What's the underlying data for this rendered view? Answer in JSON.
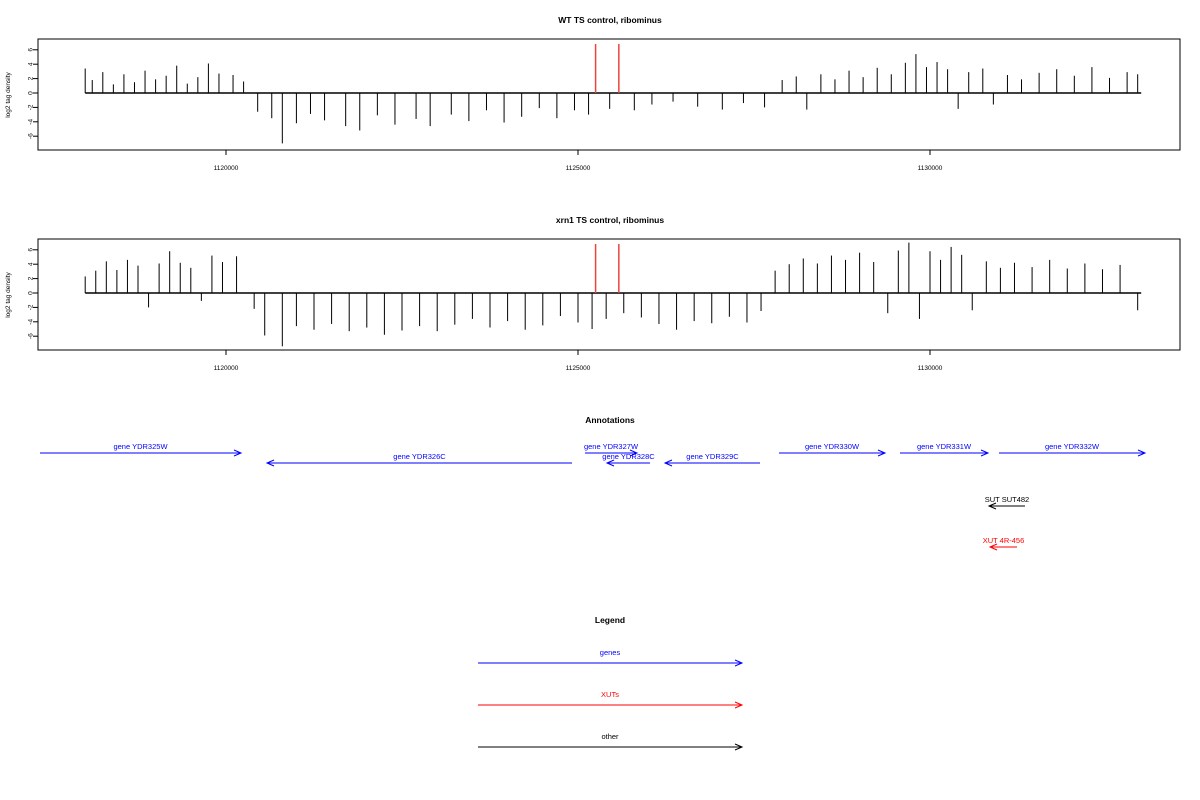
{
  "chart_data": [
    {
      "type": "bar",
      "title": "WT TS control, ribominus",
      "ylabel": "log2 tag density",
      "xlabel": "",
      "xlim": [
        1117900,
        1133100
      ],
      "ylim": [
        -8,
        7.5
      ],
      "yticks": [
        "6",
        "4",
        "2",
        "0",
        "-2",
        "-4",
        "-6"
      ],
      "ytick_values": [
        6,
        4,
        2,
        0,
        -2,
        -4,
        -6
      ],
      "xticks": [
        "1120000",
        "1125000",
        "1130000"
      ],
      "xtick_values": [
        1120000,
        1125000,
        1130000
      ],
      "baseline": {
        "x": [
          1118000,
          1133000
        ],
        "y": 0
      },
      "markers": {
        "color": "#e8453c",
        "x": [
          1125250,
          1125580
        ],
        "y_top": 6.8
      },
      "bar_color": "#000000",
      "bars": [
        {
          "x": 1118000,
          "y": 3.4
        },
        {
          "x": 1118100,
          "y": 1.8
        },
        {
          "x": 1118250,
          "y": 2.9
        },
        {
          "x": 1118400,
          "y": 1.2
        },
        {
          "x": 1118550,
          "y": 2.6
        },
        {
          "x": 1118700,
          "y": 1.5
        },
        {
          "x": 1118850,
          "y": 3.1
        },
        {
          "x": 1119000,
          "y": 1.9
        },
        {
          "x": 1119150,
          "y": 2.4
        },
        {
          "x": 1119300,
          "y": 3.8
        },
        {
          "x": 1119450,
          "y": 1.3
        },
        {
          "x": 1119600,
          "y": 2.2
        },
        {
          "x": 1119750,
          "y": 4.1
        },
        {
          "x": 1119900,
          "y": 2.7
        },
        {
          "x": 1120100,
          "y": 2.5
        },
        {
          "x": 1120250,
          "y": 1.6
        },
        {
          "x": 1120450,
          "y": -2.6
        },
        {
          "x": 1120650,
          "y": -3.5
        },
        {
          "x": 1120800,
          "y": -7.0
        },
        {
          "x": 1121000,
          "y": -4.2
        },
        {
          "x": 1121200,
          "y": -2.9
        },
        {
          "x": 1121400,
          "y": -3.8
        },
        {
          "x": 1121700,
          "y": -4.6
        },
        {
          "x": 1121900,
          "y": -5.2
        },
        {
          "x": 1122150,
          "y": -3.1
        },
        {
          "x": 1122400,
          "y": -4.4
        },
        {
          "x": 1122700,
          "y": -3.6
        },
        {
          "x": 1122900,
          "y": -4.6
        },
        {
          "x": 1123200,
          "y": -3.0
        },
        {
          "x": 1123450,
          "y": -3.9
        },
        {
          "x": 1123700,
          "y": -2.4
        },
        {
          "x": 1123950,
          "y": -4.1
        },
        {
          "x": 1124200,
          "y": -3.3
        },
        {
          "x": 1124450,
          "y": -2.1
        },
        {
          "x": 1124700,
          "y": -3.5
        },
        {
          "x": 1124950,
          "y": -2.4
        },
        {
          "x": 1125150,
          "y": -3.0
        },
        {
          "x": 1125450,
          "y": -2.2
        },
        {
          "x": 1125800,
          "y": -2.4
        },
        {
          "x": 1126050,
          "y": -1.6
        },
        {
          "x": 1126350,
          "y": -1.2
        },
        {
          "x": 1126700,
          "y": -1.9
        },
        {
          "x": 1127050,
          "y": -2.3
        },
        {
          "x": 1127350,
          "y": -1.4
        },
        {
          "x": 1127650,
          "y": -2.0
        },
        {
          "x": 1127900,
          "y": 1.8
        },
        {
          "x": 1128100,
          "y": 2.3
        },
        {
          "x": 1128250,
          "y": -2.3
        },
        {
          "x": 1128450,
          "y": 2.6
        },
        {
          "x": 1128650,
          "y": 1.9
        },
        {
          "x": 1128850,
          "y": 3.1
        },
        {
          "x": 1129050,
          "y": 2.2
        },
        {
          "x": 1129250,
          "y": 3.5
        },
        {
          "x": 1129450,
          "y": 2.6
        },
        {
          "x": 1129650,
          "y": 4.2
        },
        {
          "x": 1129800,
          "y": 5.4
        },
        {
          "x": 1129950,
          "y": 3.6
        },
        {
          "x": 1130100,
          "y": 4.3
        },
        {
          "x": 1130250,
          "y": 3.3
        },
        {
          "x": 1130400,
          "y": -2.2
        },
        {
          "x": 1130550,
          "y": 2.9
        },
        {
          "x": 1130750,
          "y": 3.4
        },
        {
          "x": 1130900,
          "y": -1.6
        },
        {
          "x": 1131100,
          "y": 2.5
        },
        {
          "x": 1131300,
          "y": 1.9
        },
        {
          "x": 1131550,
          "y": 2.8
        },
        {
          "x": 1131800,
          "y": 3.3
        },
        {
          "x": 1132050,
          "y": 2.4
        },
        {
          "x": 1132300,
          "y": 3.6
        },
        {
          "x": 1132550,
          "y": 2.1
        },
        {
          "x": 1132800,
          "y": 2.9
        },
        {
          "x": 1132950,
          "y": 2.6
        }
      ]
    },
    {
      "type": "bar",
      "title": "xrn1 TS control, ribominus",
      "ylabel": "log2 tag density",
      "xlabel": "",
      "xlim": [
        1117900,
        1133100
      ],
      "ylim": [
        -8,
        7.5
      ],
      "yticks": [
        "6",
        "4",
        "2",
        "0",
        "-2",
        "-4",
        "-6"
      ],
      "ytick_values": [
        6,
        4,
        2,
        0,
        -2,
        -4,
        -6
      ],
      "xticks": [
        "1120000",
        "1125000",
        "1130000"
      ],
      "xtick_values": [
        1120000,
        1125000,
        1130000
      ],
      "baseline": {
        "x": [
          1118000,
          1133000
        ],
        "y": 0
      },
      "markers": {
        "color": "#e8453c",
        "x": [
          1125250,
          1125580
        ],
        "y_top": 6.8
      },
      "bar_color": "#000000",
      "bars": [
        {
          "x": 1118000,
          "y": 2.3
        },
        {
          "x": 1118150,
          "y": 3.1
        },
        {
          "x": 1118300,
          "y": 4.4
        },
        {
          "x": 1118450,
          "y": 3.2
        },
        {
          "x": 1118600,
          "y": 4.6
        },
        {
          "x": 1118750,
          "y": 3.8
        },
        {
          "x": 1118900,
          "y": -2.0
        },
        {
          "x": 1119050,
          "y": 4.1
        },
        {
          "x": 1119200,
          "y": 5.8
        },
        {
          "x": 1119350,
          "y": 4.2
        },
        {
          "x": 1119500,
          "y": 3.5
        },
        {
          "x": 1119650,
          "y": -1.1
        },
        {
          "x": 1119800,
          "y": 5.2
        },
        {
          "x": 1119950,
          "y": 4.3
        },
        {
          "x": 1120150,
          "y": 5.1
        },
        {
          "x": 1120400,
          "y": -2.2
        },
        {
          "x": 1120550,
          "y": -5.9
        },
        {
          "x": 1120800,
          "y": -7.4
        },
        {
          "x": 1121000,
          "y": -4.6
        },
        {
          "x": 1121250,
          "y": -5.1
        },
        {
          "x": 1121500,
          "y": -4.3
        },
        {
          "x": 1121750,
          "y": -5.3
        },
        {
          "x": 1122000,
          "y": -4.8
        },
        {
          "x": 1122250,
          "y": -5.8
        },
        {
          "x": 1122500,
          "y": -5.2
        },
        {
          "x": 1122750,
          "y": -4.6
        },
        {
          "x": 1123000,
          "y": -5.3
        },
        {
          "x": 1123250,
          "y": -4.4
        },
        {
          "x": 1123500,
          "y": -3.6
        },
        {
          "x": 1123750,
          "y": -4.8
        },
        {
          "x": 1124000,
          "y": -3.9
        },
        {
          "x": 1124250,
          "y": -5.1
        },
        {
          "x": 1124500,
          "y": -4.5
        },
        {
          "x": 1124750,
          "y": -3.2
        },
        {
          "x": 1125000,
          "y": -4.1
        },
        {
          "x": 1125200,
          "y": -5.0
        },
        {
          "x": 1125400,
          "y": -3.6
        },
        {
          "x": 1125650,
          "y": -2.8
        },
        {
          "x": 1125900,
          "y": -3.4
        },
        {
          "x": 1126150,
          "y": -4.3
        },
        {
          "x": 1126400,
          "y": -5.1
        },
        {
          "x": 1126650,
          "y": -3.9
        },
        {
          "x": 1126900,
          "y": -4.2
        },
        {
          "x": 1127150,
          "y": -3.3
        },
        {
          "x": 1127400,
          "y": -4.1
        },
        {
          "x": 1127600,
          "y": -2.5
        },
        {
          "x": 1127800,
          "y": 3.1
        },
        {
          "x": 1128000,
          "y": 4.0
        },
        {
          "x": 1128200,
          "y": 4.8
        },
        {
          "x": 1128400,
          "y": 4.1
        },
        {
          "x": 1128600,
          "y": 5.2
        },
        {
          "x": 1128800,
          "y": 4.6
        },
        {
          "x": 1129000,
          "y": 5.6
        },
        {
          "x": 1129200,
          "y": 4.3
        },
        {
          "x": 1129400,
          "y": -2.8
        },
        {
          "x": 1129550,
          "y": 5.9
        },
        {
          "x": 1129700,
          "y": 7.0
        },
        {
          "x": 1129850,
          "y": -3.6
        },
        {
          "x": 1130000,
          "y": 5.8
        },
        {
          "x": 1130150,
          "y": 4.6
        },
        {
          "x": 1130300,
          "y": 6.4
        },
        {
          "x": 1130450,
          "y": 5.3
        },
        {
          "x": 1130600,
          "y": -2.4
        },
        {
          "x": 1130800,
          "y": 4.4
        },
        {
          "x": 1131000,
          "y": 3.5
        },
        {
          "x": 1131200,
          "y": 4.2
        },
        {
          "x": 1131450,
          "y": 3.6
        },
        {
          "x": 1131700,
          "y": 4.6
        },
        {
          "x": 1131950,
          "y": 3.4
        },
        {
          "x": 1132200,
          "y": 4.1
        },
        {
          "x": 1132450,
          "y": 3.3
        },
        {
          "x": 1132700,
          "y": 3.9
        },
        {
          "x": 1132950,
          "y": -2.4
        }
      ]
    }
  ],
  "annotations": {
    "title": "Annotations",
    "items": [
      {
        "label": "gene YDR325W",
        "color": "#0000ff",
        "row": 0,
        "dir": "right"
      },
      {
        "label": "gene YDR326C",
        "color": "#0000ff",
        "row": 1,
        "dir": "left"
      },
      {
        "label": "gene YDR327W",
        "color": "#0000ff",
        "row": 0,
        "dir": "right"
      },
      {
        "label": "gene YDR328C",
        "color": "#0000ff",
        "row": 1,
        "dir": "left"
      },
      {
        "label": "gene YDR329C",
        "color": "#0000ff",
        "row": 1,
        "dir": "left"
      },
      {
        "label": "gene YDR330W",
        "color": "#0000ff",
        "row": 0,
        "dir": "right"
      },
      {
        "label": "gene YDR331W",
        "color": "#0000ff",
        "row": 0,
        "dir": "right"
      },
      {
        "label": "gene YDR332W",
        "color": "#0000ff",
        "row": 0,
        "dir": "right"
      },
      {
        "label": "SUT SUT482",
        "color": "#000000",
        "row": 2,
        "dir": "left"
      },
      {
        "label": "XUT 4R-456",
        "color": "#ff0000",
        "row": 3,
        "dir": "left"
      }
    ]
  },
  "legend": {
    "title": "Legend",
    "items": [
      {
        "label": "genes",
        "color": "#0000ff"
      },
      {
        "label": "XUTs",
        "color": "#ff0000"
      },
      {
        "label": "other",
        "color": "#000000"
      }
    ]
  }
}
